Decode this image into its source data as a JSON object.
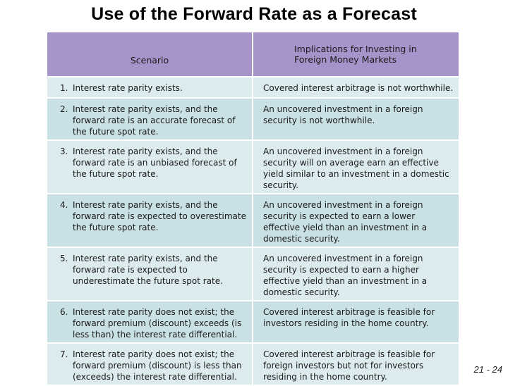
{
  "title": "Use of the Forward Rate as a Forecast",
  "table": {
    "headers": {
      "scenario": "Scenario",
      "implications": "Implications for Investing in\nForeign Money Markets"
    },
    "rows": [
      {
        "num": "1.",
        "scenario": "Interest rate parity exists.",
        "implication": "Covered interest arbitrage is not worthwhile."
      },
      {
        "num": "2.",
        "scenario": "Interest rate parity exists, and the forward rate is an accurate forecast of the future spot rate.",
        "implication": "An uncovered investment in a foreign security is not worthwhile."
      },
      {
        "num": "3.",
        "scenario": "Interest rate parity exists, and the forward rate is an unbiased forecast of the future spot rate.",
        "implication": "An uncovered investment in a foreign security will on average earn an effective yield similar to an investment in a domestic security."
      },
      {
        "num": "4.",
        "scenario": "Interest rate parity exists, and the forward rate is expected to overestimate the future spot rate.",
        "implication": "An uncovered investment in a foreign security is expected to earn a lower effective yield than an investment in a domestic security."
      },
      {
        "num": "5.",
        "scenario": "Interest rate parity exists, and the forward rate is expected to underestimate the future spot rate.",
        "implication": "An uncovered investment in a foreign security is expected to earn a higher effective yield than an investment in a domestic security."
      },
      {
        "num": "6.",
        "scenario": "Interest rate parity does not exist; the forward premium (discount) exceeds (is less than) the interest rate differential.",
        "implication": "Covered interest arbitrage is feasible for investors residing in the home country."
      },
      {
        "num": "7.",
        "scenario": "Interest rate parity does not exist; the forward premium (discount) is less than (exceeds) the interest rate differential.",
        "implication": "Covered interest arbitrage is feasible for foreign investors but not for investors residing in the home country."
      }
    ]
  },
  "page_number": "21 - 24"
}
